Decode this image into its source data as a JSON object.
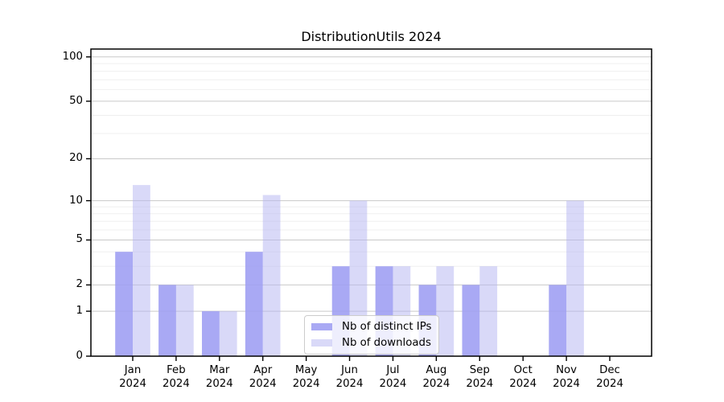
{
  "figure": {
    "background": "#ffffff"
  },
  "chart_data": {
    "type": "bar",
    "title": "DistributionUtils 2024",
    "months": [
      "Jan",
      "Feb",
      "Mar",
      "Apr",
      "May",
      "Jun",
      "Jul",
      "Aug",
      "Sep",
      "Oct",
      "Nov",
      "Dec"
    ],
    "year": "2024",
    "series": [
      {
        "name": "Nb of distinct IPs",
        "base_color": "157,157,243",
        "alpha": 0.88,
        "values": [
          4,
          2,
          1,
          4,
          0,
          3,
          3,
          2,
          2,
          0,
          2,
          0
        ]
      },
      {
        "name": "Nb of downloads",
        "base_color": "179,179,241",
        "alpha": 0.5,
        "values": [
          13,
          2,
          1,
          11,
          0,
          10,
          3,
          3,
          3,
          0,
          10,
          0
        ]
      }
    ],
    "yscale": "log1p",
    "yticks": [
      0,
      1,
      2,
      5,
      10,
      20,
      50,
      100
    ],
    "minor_yticks": [
      3,
      4,
      6,
      7,
      8,
      9,
      30,
      40,
      60,
      70,
      80,
      90
    ],
    "ylim": [
      0,
      113
    ],
    "xlabel": "",
    "ylabel": "",
    "grid": {
      "on": true,
      "major_color": "#c9c9c9",
      "minor_color": "#efefef"
    },
    "legend": {
      "position": "lower center inside",
      "entries": [
        "Nb of distinct IPs",
        "Nb of downloads"
      ]
    },
    "axis_color": "#000000"
  }
}
